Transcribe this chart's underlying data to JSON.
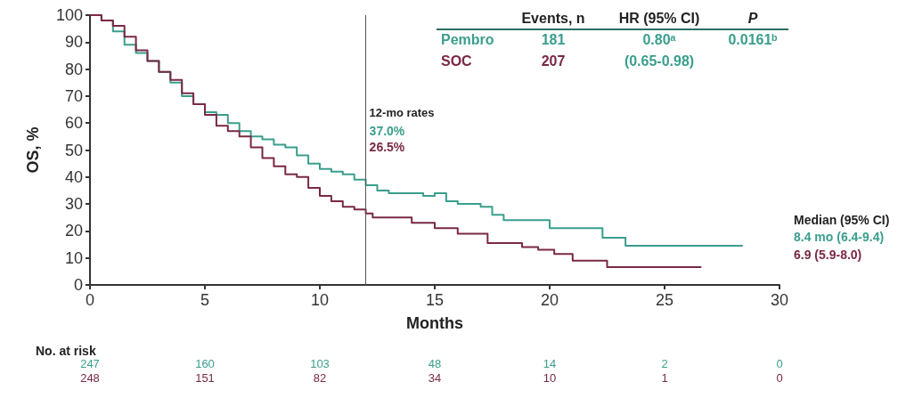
{
  "chart_data": {
    "type": "step",
    "xlabel": "Months",
    "ylabel": "OS, %",
    "xlim": [
      0,
      30
    ],
    "xticks": [
      0,
      5,
      10,
      15,
      20,
      25,
      30
    ],
    "ylim": [
      0,
      100
    ],
    "yticks": [
      0,
      10,
      20,
      30,
      40,
      50,
      60,
      70,
      80,
      90,
      100
    ],
    "grid": false,
    "legend": false,
    "marker": "none",
    "line_style": "solid",
    "series": [
      {
        "name": "Pembro",
        "color": "#3a9e8c",
        "x": [
          0,
          0.5,
          1,
          1.5,
          2,
          2.5,
          3,
          3.5,
          4,
          4.5,
          5,
          5.5,
          6,
          6.5,
          7,
          7.5,
          8,
          8.5,
          9,
          9.5,
          10,
          10.5,
          11,
          11.5,
          12,
          12.5,
          13,
          14,
          14.5,
          15,
          15.5,
          16,
          17,
          17.5,
          18,
          19.8,
          20,
          22.3,
          23.3,
          28.4
        ],
        "values": [
          100,
          98,
          94,
          89,
          86,
          83,
          79,
          75,
          70,
          67,
          64,
          63,
          60,
          57,
          55,
          54,
          52,
          51,
          48,
          45,
          43,
          42,
          41,
          39,
          37,
          35,
          34,
          34,
          33,
          34,
          31,
          30,
          29,
          26,
          24,
          24,
          21,
          17.5,
          14.5,
          14.5
        ]
      },
      {
        "name": "SOC",
        "color": "#7a2846",
        "x": [
          0,
          0.5,
          1,
          1.5,
          2,
          2.5,
          3,
          3.5,
          4,
          4.5,
          5,
          5.5,
          6,
          6.5,
          7,
          7.5,
          8,
          8.5,
          9,
          9.5,
          10,
          10.5,
          11,
          11.5,
          12,
          12.3,
          14,
          15,
          16,
          17.3,
          18.8,
          19.5,
          20.2,
          21,
          22.5,
          26.6
        ],
        "values": [
          100,
          98,
          96,
          92,
          87,
          83,
          79,
          76,
          71,
          67,
          63,
          59,
          57,
          55,
          51,
          47,
          44,
          41,
          40,
          36,
          33,
          31,
          29,
          28,
          26.5,
          25,
          23,
          21,
          19,
          15.5,
          14,
          13,
          11.5,
          9,
          6.6,
          6.6
        ]
      }
    ],
    "ref_lines": [
      {
        "axis": "x",
        "value": 12,
        "label": "12-mo rates",
        "color": "#555555"
      }
    ],
    "annotations": [
      "Events, n",
      "HR (95% CI)",
      "P",
      "181",
      "0.80ᵃ",
      "0.0161ᵇ",
      "207",
      "(0.65-0.98)",
      "37.0%",
      "26.5%",
      "Median (95% CI)",
      "8.4 mo (6.4-9.4)",
      "6.9 (5.9-8.0)",
      "No. at risk",
      "247",
      "160",
      "103",
      "48",
      "14",
      "2",
      "0",
      "248",
      "151",
      "82",
      "34",
      "10",
      "1",
      "0"
    ]
  }
}
